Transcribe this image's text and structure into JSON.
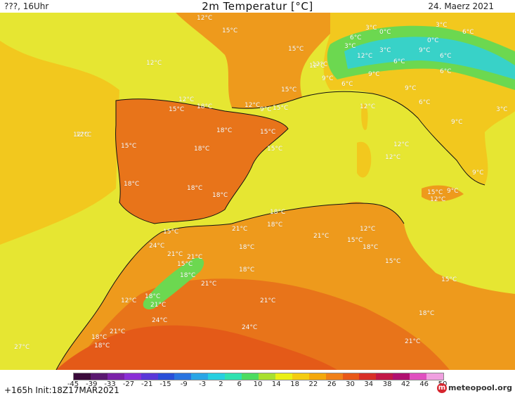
{
  "header": {
    "left": "???, 16Uhr",
    "title": "2m Temperatur [°C]",
    "date": "24. Maerz 2021"
  },
  "footer": {
    "init": "+165h  Init:18Z17MAR2021",
    "brand": "meteopool.org"
  },
  "legend": {
    "ticks": [
      "-45",
      "-39",
      "-33",
      "-27",
      "-21",
      "-15",
      "-9",
      "-3",
      "2",
      "6",
      "10",
      "14",
      "18",
      "22",
      "26",
      "30",
      "34",
      "38",
      "42",
      "46",
      "50"
    ],
    "colors": [
      "#3a0a3a",
      "#5a1870",
      "#7a22a8",
      "#8a2fd6",
      "#5a38d8",
      "#2a4fd8",
      "#2a74e0",
      "#2aa6e6",
      "#27cfe0",
      "#2ee2b0",
      "#4cdc60",
      "#a8e030",
      "#eaf015",
      "#f4cc10",
      "#f4a80c",
      "#f08018",
      "#e85818",
      "#d83028",
      "#c21848",
      "#b01070",
      "#e050c0",
      "#f0a0e0"
    ]
  },
  "map": {
    "palette": {
      "sea": "#e6e632",
      "land_med": "#ee9a1c",
      "land_hot": "#e8741a",
      "land_hot2": "#e45a18",
      "cool": "#f2c81e",
      "alps_green": "#6cd850",
      "alps_cyan": "#38d2c8"
    },
    "labels": [
      {
        "t": "12°C"
      },
      {
        "t": "15°C"
      },
      {
        "t": "3°C"
      },
      {
        "t": "0°C"
      },
      {
        "t": "3°C"
      },
      {
        "t": "6°C"
      },
      {
        "t": "6°C"
      },
      {
        "t": "0°C"
      },
      {
        "t": "12°C"
      },
      {
        "t": "15°C"
      },
      {
        "t": "12°C"
      },
      {
        "t": "3°C"
      },
      {
        "t": "3°C"
      },
      {
        "t": "6°C"
      },
      {
        "t": "9°C"
      },
      {
        "t": "6°C"
      },
      {
        "t": "12°C"
      },
      {
        "t": "6°C"
      },
      {
        "t": "9°C"
      },
      {
        "t": "9°C"
      },
      {
        "t": "12°C"
      },
      {
        "t": "15°C"
      },
      {
        "t": "6°C"
      },
      {
        "t": "6°C"
      },
      {
        "t": "9°C"
      },
      {
        "t": "12°C"
      },
      {
        "t": "15°C"
      },
      {
        "t": "18°C"
      },
      {
        "t": "12°C"
      },
      {
        "t": "9°C"
      },
      {
        "t": "15°C"
      },
      {
        "t": "12°C"
      },
      {
        "t": "3°C"
      },
      {
        "t": "9°C"
      },
      {
        "t": "12°C"
      },
      {
        "t": "18°C"
      },
      {
        "t": "15°C"
      },
      {
        "t": "12°C"
      },
      {
        "t": "15°C"
      },
      {
        "t": "18°C"
      },
      {
        "t": "15°C"
      },
      {
        "t": "12°C"
      },
      {
        "t": "12°C"
      },
      {
        "t": "9°C"
      },
      {
        "t": "15°C"
      },
      {
        "t": "18°C"
      },
      {
        "t": "18°C"
      },
      {
        "t": "12°C"
      },
      {
        "t": "9°C"
      },
      {
        "t": "18°C"
      },
      {
        "t": "18°C"
      },
      {
        "t": "15°C"
      },
      {
        "t": "21°C"
      },
      {
        "t": "18°C"
      },
      {
        "t": "21°C"
      },
      {
        "t": "12°C"
      },
      {
        "t": "15°C"
      },
      {
        "t": "18°C"
      },
      {
        "t": "24°C"
      },
      {
        "t": "21°C"
      },
      {
        "t": "21°C"
      },
      {
        "t": "15°C"
      },
      {
        "t": "18°C"
      },
      {
        "t": "18°C"
      },
      {
        "t": "15°C"
      },
      {
        "t": "18°C"
      },
      {
        "t": "21°C"
      },
      {
        "t": "15°C"
      },
      {
        "t": "18°C"
      },
      {
        "t": "12°C"
      },
      {
        "t": "18°C"
      },
      {
        "t": "21°C"
      },
      {
        "t": "24°C"
      },
      {
        "t": "24°C"
      },
      {
        "t": "21°C"
      },
      {
        "t": "18°C"
      },
      {
        "t": "21°C"
      },
      {
        "t": "27°C"
      },
      {
        "t": "21°C"
      },
      {
        "t": "18°C"
      }
    ]
  }
}
